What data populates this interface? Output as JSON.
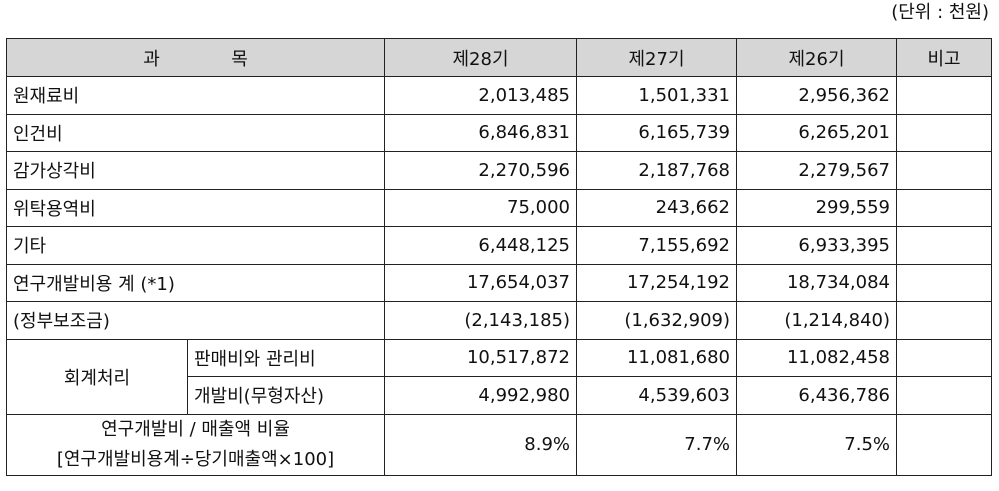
{
  "unit_note": "(단위 : 천원)",
  "headers": {
    "subject_1": "과",
    "subject_2": "목",
    "p28": "제28기",
    "p27": "제27기",
    "p26": "제26기",
    "remark": "비고"
  },
  "rows": [
    {
      "label": "원재료비",
      "p28": "2,013,485",
      "p27": "1,501,331",
      "p26": "2,956,362",
      "remark": ""
    },
    {
      "label": "인건비",
      "p28": "6,846,831",
      "p27": "6,165,739",
      "p26": "6,265,201",
      "remark": ""
    },
    {
      "label": "감가상각비",
      "p28": "2,270,596",
      "p27": "2,187,768",
      "p26": "2,279,567",
      "remark": ""
    },
    {
      "label": "위탁용역비",
      "p28": "75,000",
      "p27": "243,662",
      "p26": "299,559",
      "remark": ""
    },
    {
      "label": "기타",
      "p28": "6,448,125",
      "p27": "7,155,692",
      "p26": "6,933,395",
      "remark": ""
    },
    {
      "label": "연구개발비용 계 (*1)",
      "p28": "17,654,037",
      "p27": "17,254,192",
      "p26": "18,734,084",
      "remark": ""
    },
    {
      "label": "(정부보조금)",
      "p28": "(2,143,185)",
      "p27": "(1,632,909)",
      "p26": "(1,214,840)",
      "remark": ""
    }
  ],
  "accounting": {
    "label": "회계처리",
    "sub": [
      {
        "label": "판매비와 관리비",
        "p28": "10,517,872",
        "p27": "11,081,680",
        "p26": "11,082,458",
        "remark": ""
      },
      {
        "label": "개발비(무형자산)",
        "p28": "4,992,980",
        "p27": "4,539,603",
        "p26": "6,436,786",
        "remark": ""
      }
    ]
  },
  "ratio": {
    "label_line1": "연구개발비 / 매출액 비율",
    "label_line2": "[연구개발비용계÷당기매출액×100]",
    "p28": "8.9%",
    "p27": "7.7%",
    "p26": "7.5%",
    "remark": ""
  }
}
